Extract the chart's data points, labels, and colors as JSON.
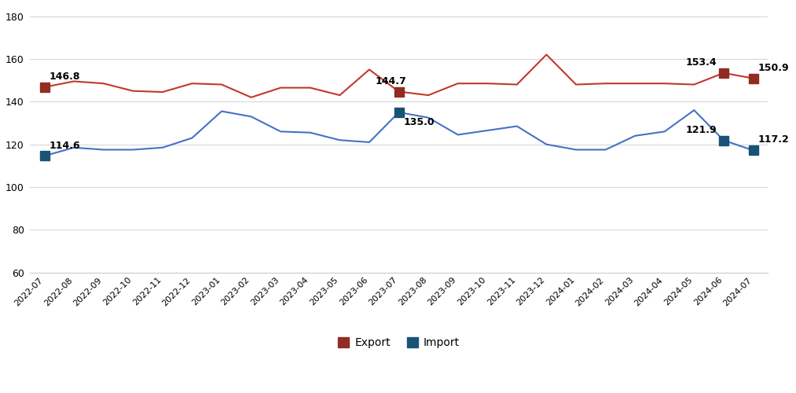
{
  "labels": [
    "2022-07",
    "2022-08",
    "2022-09",
    "2022-10",
    "2022-11",
    "2022-12",
    "2023-01",
    "2023-02",
    "2023-03",
    "2023-04",
    "2023-05",
    "2023-06",
    "2023-07",
    "2023-08",
    "2023-09",
    "2023-10",
    "2023-11",
    "2023-12",
    "2024-01",
    "2024-02",
    "2024-03",
    "2024-04",
    "2024-05",
    "2024-06",
    "2024-07"
  ],
  "export": [
    146.8,
    149.5,
    148.5,
    145.0,
    144.5,
    148.5,
    148.0,
    142.0,
    146.5,
    146.5,
    143.0,
    155.0,
    144.7,
    143.0,
    148.5,
    148.5,
    148.0,
    162.0,
    148.0,
    148.5,
    148.5,
    148.5,
    148.0,
    153.4,
    150.9
  ],
  "import_data": [
    114.6,
    118.5,
    117.5,
    117.5,
    118.5,
    123.0,
    135.5,
    133.0,
    126.0,
    125.5,
    122.0,
    121.0,
    135.0,
    132.5,
    124.5,
    126.5,
    128.5,
    120.0,
    117.5,
    117.5,
    124.0,
    126.0,
    136.0,
    121.9,
    117.2
  ],
  "highlight_indices": [
    0,
    12,
    23,
    24
  ],
  "export_color": "#C0392B",
  "import_color": "#4472C4",
  "marker_color_export": "#922B21",
  "marker_color_import": "#1A5276",
  "background_color": "#FFFFFF",
  "ylim": [
    60,
    185
  ],
  "yticks": [
    60,
    80,
    100,
    120,
    140,
    160,
    180
  ],
  "grid_color": "#D5D8DC",
  "legend_export_label": "Export",
  "legend_import_label": "Import",
  "annotate_export": {
    "0": "146.8",
    "12": "144.7",
    "23": "153.4",
    "24": "150.9"
  },
  "annotate_import": {
    "0": "114.6",
    "12": "135.0",
    "23": "121.9",
    "24": "117.2"
  }
}
